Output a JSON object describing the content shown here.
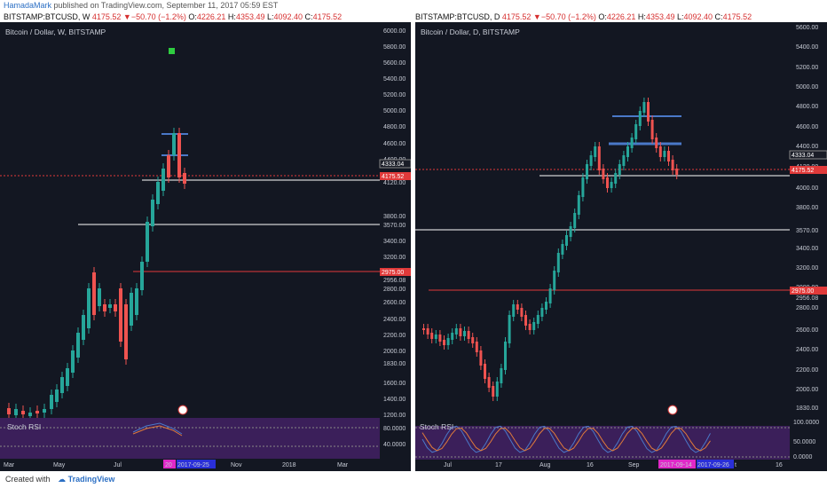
{
  "topbar": {
    "user": "HamadaMark",
    "text": " published on TradingView.com, September 11, 2017 05:59 EST"
  },
  "left": {
    "header_symbol": "BITSTAMP:BTCUSD, W ",
    "header_price": "4175.52",
    "header_change": "−50.70 (−1.2%)",
    "header_o_label": " O:",
    "header_o": "4226.21",
    "header_h_label": " H:",
    "header_h": "4353.49",
    "header_l_label": " L:",
    "header_l": "4092.40",
    "header_c_label": " C:",
    "header_c": "4175.52",
    "title": "Bitcoin / Dollar, W, BITSTAMP",
    "rsi_label": "Stoch RSI",
    "price_labels": [
      "6000.00",
      "5800.00",
      "5600.00",
      "5400.00",
      "5200.00",
      "5000.00",
      "4800.00",
      "4600.00",
      "4400.00",
      "4120.00",
      "3800.00",
      "3570.00",
      "3400.00",
      "3200.00",
      "2956.08",
      "2800.00",
      "2600.00",
      "2400.00",
      "2200.00",
      "2000.00",
      "1830.00",
      "1600.00",
      "1400.00",
      "1200.00"
    ],
    "tags": {
      "t1": "4333.04",
      "t2": "4175.52",
      "t3": "2975.00"
    },
    "rsi_levels": [
      "80.0000",
      "40.0000"
    ],
    "time_labels": [
      "Mar",
      "May",
      "Jul",
      "20",
      "2017-09-25",
      "Nov",
      "2018",
      "Mar"
    ]
  },
  "right": {
    "header_symbol": "BITSTAMP:BTCUSD, D ",
    "header_price": "4175.52",
    "header_change": "−50.70 (−1.2%)",
    "header_o_label": " O:",
    "header_o": "4226.21",
    "header_h_label": " H:",
    "header_h": "4353.49",
    "header_l_label": " L:",
    "header_l": "4092.40",
    "header_c_label": " C:",
    "header_c": "4175.52",
    "title": "Bitcoin / Dollar, D, BITSTAMP",
    "rsi_label": "Stoch RSI",
    "price_labels": [
      "5600.00",
      "5400.00",
      "5200.00",
      "5000.00",
      "4800.00",
      "4600.00",
      "4400.00",
      "4120.00",
      "4000.00",
      "3800.00",
      "3570.00",
      "3400.00",
      "3200.00",
      "3000.00",
      "2956.08",
      "2800.00",
      "2600.00",
      "2400.00",
      "2200.00",
      "2000.00",
      "1830.00"
    ],
    "tags": {
      "t1": "4333.04",
      "t2": "4175.52",
      "t3": "2975.00"
    },
    "rsi_levels": [
      "100.0000",
      "50.0000",
      "0.0000"
    ],
    "time_labels": [
      "Jul",
      "17",
      "Aug",
      "16",
      "Sep",
      "2017-09-14",
      "2017-09-26",
      "t",
      "16"
    ]
  },
  "footer": {
    "created": "Created with",
    "brand": "TradingView"
  },
  "colors": {
    "up": "#26a69a",
    "down": "#ef5350",
    "panel_bg": "#131722",
    "red_line": "#e03a3a",
    "blue_line": "#4a78c8",
    "rsi_bg": "#3b1f5a"
  }
}
